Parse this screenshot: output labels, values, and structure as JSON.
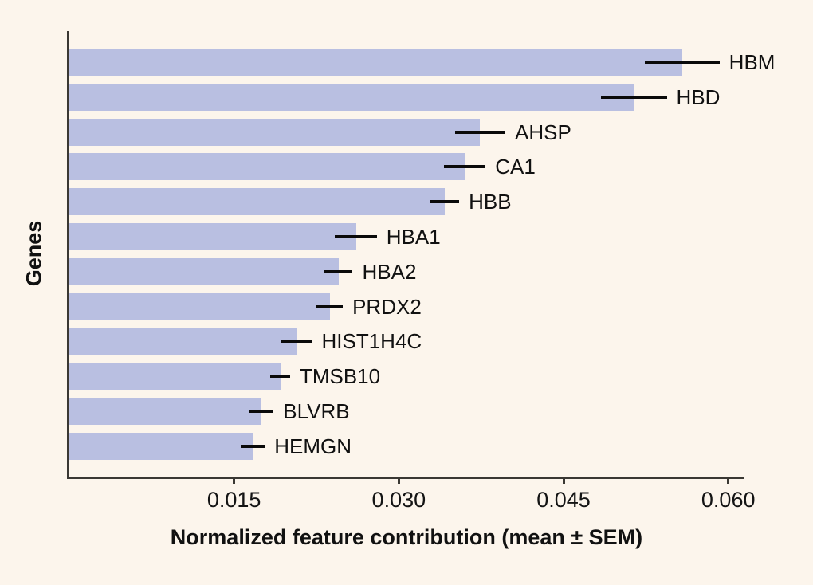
{
  "figure": {
    "background_color": "#fcf5ec",
    "text_color": "#111111",
    "spine_color": "#3a3833"
  },
  "chart_data": {
    "type": "bar",
    "orientation": "horizontal",
    "title": "",
    "xlabel": "Normalized feature contribution (mean ± SEM)",
    "ylabel": "Genes",
    "categories": [
      "HBM",
      "HBD",
      "AHSP",
      "CA1",
      "HBB",
      "HBA1",
      "HBA2",
      "PRDX2",
      "HIST1H4C",
      "TMSB10",
      "BLVRB",
      "HEMGN"
    ],
    "values": [
      0.0558,
      0.0514,
      0.0374,
      0.036,
      0.0342,
      0.0261,
      0.0245,
      0.0237,
      0.0207,
      0.0192,
      0.0175,
      0.0167
    ],
    "sem": [
      0.0034,
      0.003,
      0.0023,
      0.0019,
      0.0013,
      0.0019,
      0.0013,
      0.0012,
      0.0014,
      0.0009,
      0.0011,
      0.0011
    ],
    "xlim": [
      0,
      0.0614
    ],
    "xticks": [
      0.015,
      0.03,
      0.045,
      0.06
    ],
    "xtick_labels": [
      "0.015",
      "0.030",
      "0.045",
      "0.060"
    ],
    "bar_color": "#b9bfe1",
    "error_color": "#0a0a0a",
    "grid": false,
    "legend": null
  }
}
